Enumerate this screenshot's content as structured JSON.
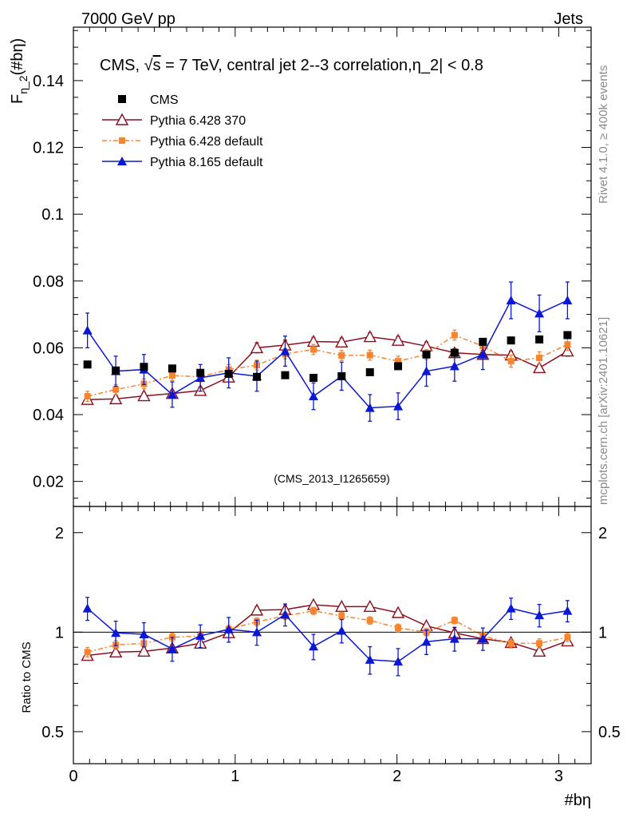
{
  "header": {
    "left": "7000 GeV pp",
    "right": "Jets",
    "side_top": "Rivet 4.1.0, ≥ 400k events",
    "side_bottom": "mcplots.cern.ch [arXiv:2401.10621]"
  },
  "colors": {
    "cms": "#000000",
    "p6_370": "#8b0f1e",
    "p6_default": "#f7852f",
    "p8": "#0a18d6",
    "watermark": "#9a9a9a",
    "side_text": "#8a8a8a"
  },
  "chart_data": {
    "type": "line",
    "title": "CMS, √s = 7 TeV, central jet 2--3 correlation,η_2| < 0.8",
    "title_parts": {
      "prefix": "CMS, ",
      "sqrt": "√",
      "s": "s",
      "rest": " = 7 TeV, central jet 2--3 correlation,η_2| < 0.8"
    },
    "ylabel": "F_η_2(#bη)",
    "ylabel_parts": {
      "main": "F",
      "sub": "η_2",
      "rest": "(#bη)"
    },
    "xlabel": "#bη",
    "ratio_ylabel": "Ratio to CMS",
    "watermark": "(CMS_2013_I1265659)",
    "xlim": [
      0,
      3.2
    ],
    "ylim": [
      0.0125,
      0.156
    ],
    "ratio_ylim": [
      0.4,
      2.4
    ],
    "x_ticks": [
      "0",
      "1",
      "2",
      "3"
    ],
    "y_ticks": [
      "0.02",
      "0.04",
      "0.06",
      "0.08",
      "0.1",
      "0.12",
      "0.14"
    ],
    "ratio_ticks": [
      "0.5",
      "1",
      "2"
    ],
    "x": [
      0.087,
      0.262,
      0.436,
      0.611,
      0.785,
      0.96,
      1.134,
      1.309,
      1.484,
      1.658,
      1.833,
      2.007,
      2.182,
      2.356,
      2.531,
      2.705,
      2.88,
      3.054
    ],
    "series": [
      {
        "name": "CMS",
        "key": "cms",
        "marker": "square",
        "values": [
          0.055,
          0.0532,
          0.0543,
          0.0538,
          0.0525,
          0.0522,
          0.0513,
          0.0518,
          0.051,
          0.0515,
          0.0527,
          0.0545,
          0.058,
          0.0585,
          0.0618,
          0.0622,
          0.0625,
          0.0638
        ],
        "errors": [
          0.0005,
          0.0005,
          0.0005,
          0.0005,
          0.0005,
          0.0005,
          0.0005,
          0.0005,
          0.0005,
          0.0005,
          0.0005,
          0.0005,
          0.0005,
          0.0005,
          0.0005,
          0.0005,
          0.0005,
          0.0005
        ],
        "ratio": [
          1,
          1,
          1,
          1,
          1,
          1,
          1,
          1,
          1,
          1,
          1,
          1,
          1,
          1,
          1,
          1,
          1,
          1
        ]
      },
      {
        "name": "Pythia 6.428 370",
        "key": "p6_370",
        "marker": "open-triangle",
        "values": [
          0.0445,
          0.0447,
          0.0456,
          0.0463,
          0.0472,
          0.0512,
          0.06,
          0.0608,
          0.0619,
          0.0617,
          0.0633,
          0.0622,
          0.0605,
          0.0585,
          0.058,
          0.0578,
          0.054,
          0.059
        ],
        "errors": [
          0.001,
          0.001,
          0.001,
          0.001,
          0.001,
          0.0012,
          0.0015,
          0.0015,
          0.0012,
          0.0012,
          0.0012,
          0.0012,
          0.0012,
          0.0012,
          0.0012,
          0.0012,
          0.0012,
          0.0015
        ],
        "ratio": [
          0.85,
          0.87,
          0.875,
          0.895,
          0.925,
          0.995,
          1.165,
          1.17,
          1.21,
          1.195,
          1.195,
          1.145,
          1.045,
          0.995,
          0.955,
          0.93,
          0.875,
          0.94
        ]
      },
      {
        "name": "Pythia 6.428 default",
        "key": "p6_default",
        "marker": "filled-square",
        "values": [
          0.0455,
          0.0475,
          0.0492,
          0.0517,
          0.0513,
          0.0535,
          0.0548,
          0.0582,
          0.0595,
          0.0577,
          0.0578,
          0.056,
          0.058,
          0.0638,
          0.0605,
          0.056,
          0.057,
          0.061
        ],
        "errors": [
          0.0015,
          0.0015,
          0.0015,
          0.0015,
          0.0015,
          0.0015,
          0.0015,
          0.0015,
          0.0015,
          0.0015,
          0.0015,
          0.0015,
          0.0015,
          0.0015,
          0.0015,
          0.0018,
          0.0018,
          0.0018
        ],
        "ratio": [
          0.87,
          0.915,
          0.925,
          0.965,
          0.975,
          1.02,
          1.075,
          1.12,
          1.16,
          1.12,
          1.085,
          1.03,
          1.0,
          1.085,
          0.975,
          0.925,
          0.925,
          0.965
        ]
      },
      {
        "name": "Pythia 8.165 default",
        "key": "p8",
        "marker": "filled-triangle",
        "values": [
          0.0652,
          0.053,
          0.0535,
          0.046,
          0.051,
          0.0525,
          0.0515,
          0.059,
          0.0455,
          0.0515,
          0.042,
          0.0425,
          0.053,
          0.0545,
          0.058,
          0.0742,
          0.0703,
          0.0742
        ],
        "errors": [
          0.0052,
          0.0045,
          0.0045,
          0.0038,
          0.004,
          0.0045,
          0.0045,
          0.0045,
          0.004,
          0.0042,
          0.004,
          0.004,
          0.0045,
          0.0045,
          0.0045,
          0.0055,
          0.0055,
          0.0055
        ],
        "ratio": [
          1.18,
          0.995,
          0.985,
          0.89,
          0.975,
          1.02,
          1.0,
          1.13,
          0.905,
          1.01,
          0.825,
          0.815,
          0.935,
          0.955,
          0.955,
          1.18,
          1.125,
          1.16
        ]
      }
    ]
  }
}
